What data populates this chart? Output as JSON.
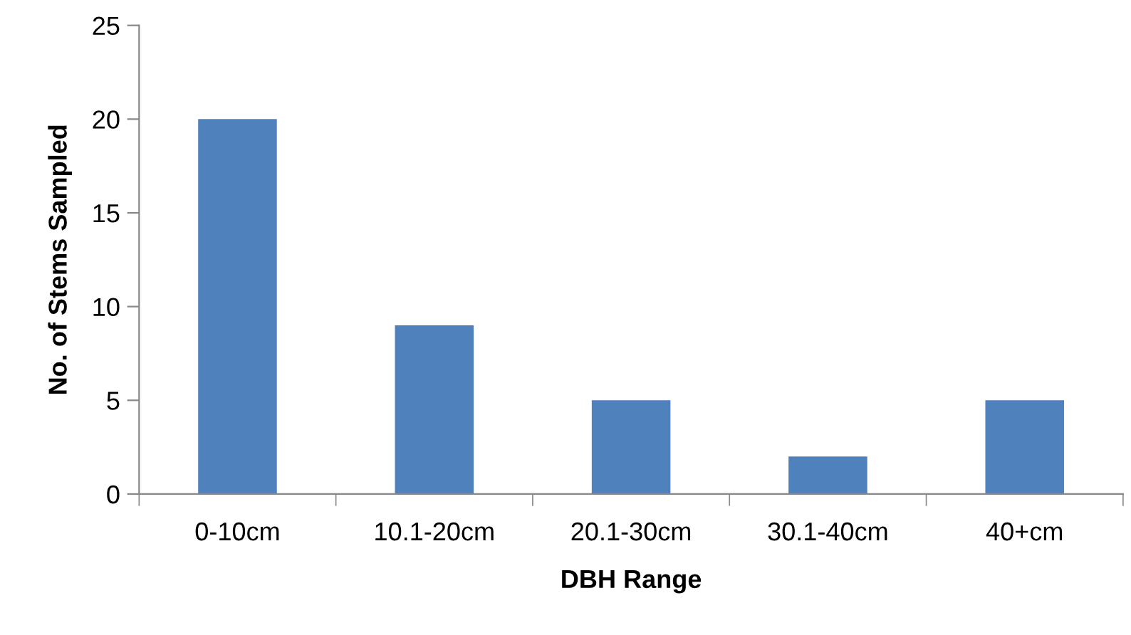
{
  "chart_data": {
    "type": "bar",
    "xlabel": "DBH Range",
    "ylabel": "No. of Stems Sampled",
    "categories": [
      "0-10cm",
      "10.1-20cm",
      "20.1-30cm",
      "30.1-40cm",
      "40+cm"
    ],
    "values": [
      20,
      9,
      5,
      2,
      5
    ],
    "color": "#4f81bd",
    "ylim": [
      0,
      25
    ],
    "yticks": [
      0,
      5,
      10,
      15,
      20,
      25
    ],
    "grid": false,
    "legend": false
  }
}
